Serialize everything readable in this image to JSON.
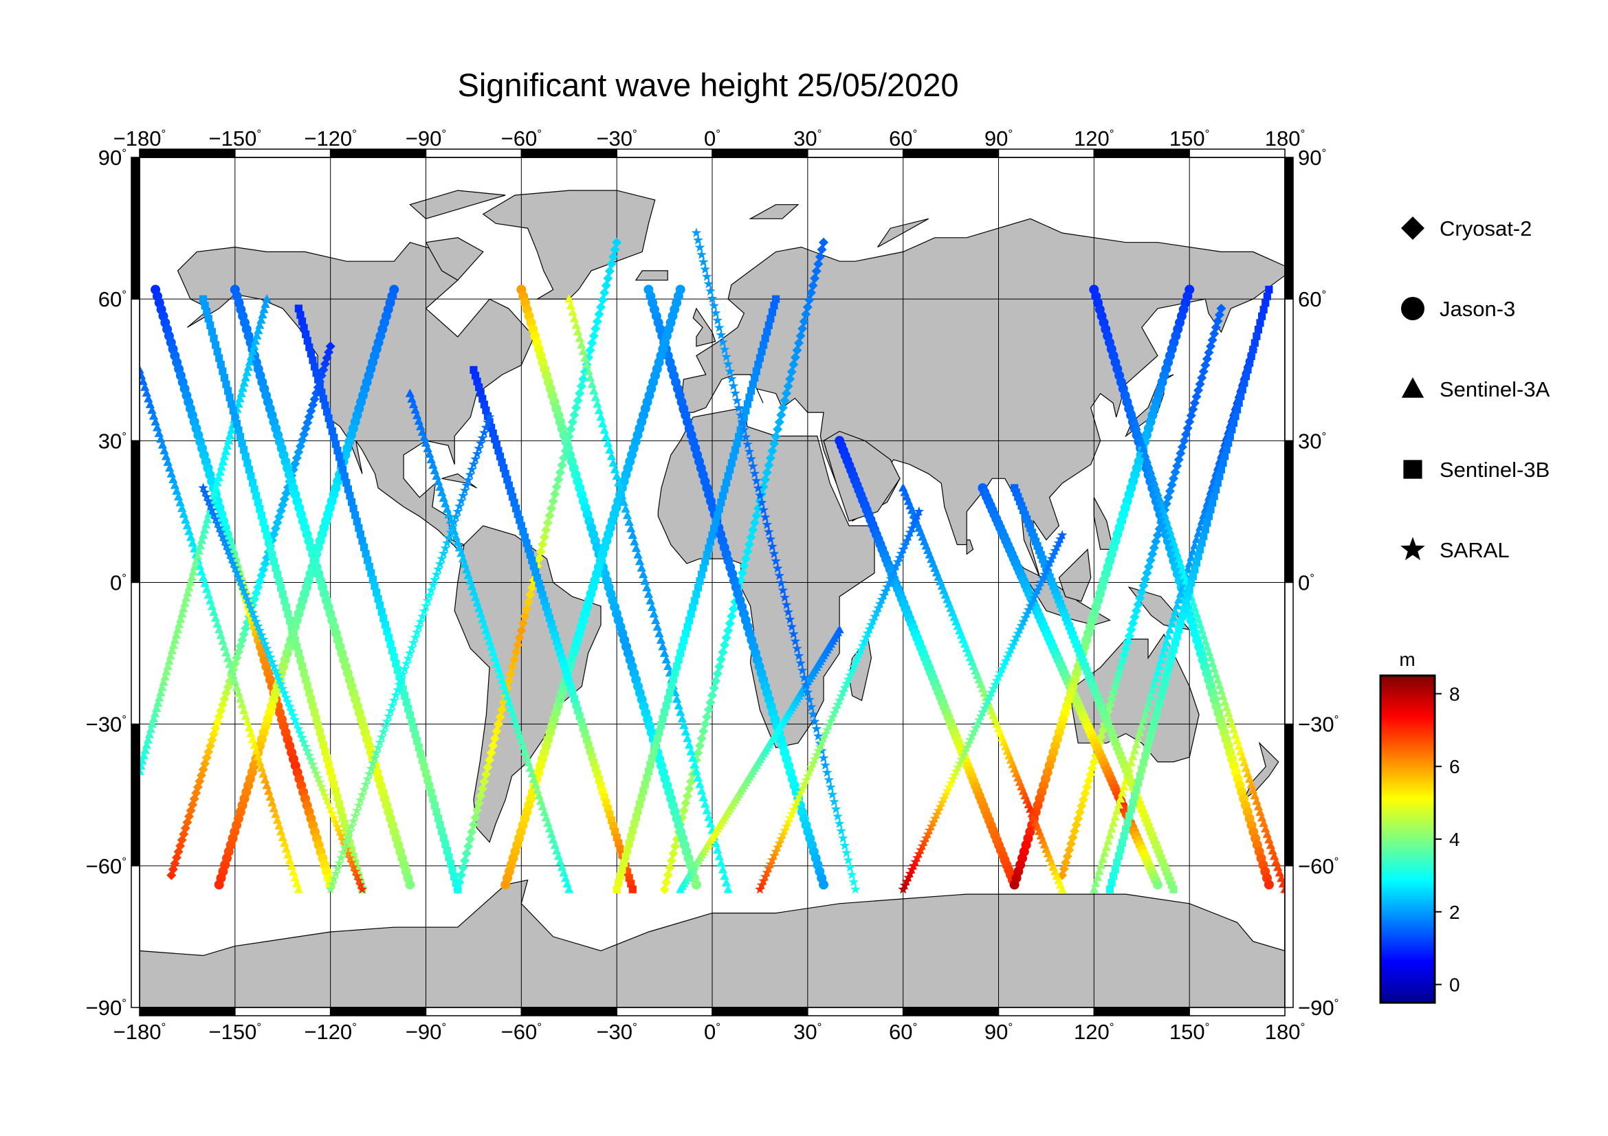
{
  "title": "Significant wave height 25/05/2020",
  "map": {
    "lon_ticks": [
      "-180",
      "-150",
      "-120",
      "-90",
      "-60",
      "-30",
      "0",
      "30",
      "60",
      "90",
      "120",
      "150",
      "180"
    ],
    "lat_ticks": [
      "90",
      "60",
      "30",
      "0",
      "-30",
      "-60",
      "-90"
    ],
    "degree_symbol": "°",
    "land_color": "#bdbdbd",
    "ocean_color": "#ffffff",
    "grid_color": "#000000"
  },
  "legend": {
    "items": [
      {
        "name": "Cryosat-2",
        "symbol": "diamond"
      },
      {
        "name": "Jason-3",
        "symbol": "circle"
      },
      {
        "name": "Sentinel-3A",
        "symbol": "triangle"
      },
      {
        "name": "Sentinel-3B",
        "symbol": "square"
      },
      {
        "name": "SARAL",
        "symbol": "star"
      }
    ]
  },
  "colorbar": {
    "unit": "m",
    "ticks": [
      "8",
      "6",
      "4",
      "2",
      "0"
    ],
    "range": [
      -0.5,
      8.5
    ],
    "colormap": "jet"
  },
  "chart_data": {
    "type": "scatter",
    "title": "Significant wave height 25/05/2020",
    "xlabel": "",
    "ylabel": "",
    "xlim": [
      -180,
      180
    ],
    "ylim": [
      -90,
      90
    ],
    "value_unit": "m",
    "series": [
      {
        "name": "Cryosat-2",
        "tracks": [
          {
            "from": [
              -30,
              72
            ],
            "to": [
              -80,
              -65
            ],
            "swh": [
              2.5,
              3,
              4,
              6,
              5,
              3
            ]
          },
          {
            "from": [
              35,
              72
            ],
            "to": [
              -15,
              -65
            ],
            "swh": [
              1.5,
              2,
              2.5,
              3,
              4,
              5
            ]
          },
          {
            "from": [
              160,
              58
            ],
            "to": [
              110,
              -62
            ],
            "swh": [
              1.5,
              1.5,
              2,
              3,
              5,
              6
            ]
          },
          {
            "from": [
              -120,
              50
            ],
            "to": [
              -170,
              -62
            ],
            "swh": [
              1,
              2,
              2.5,
              4,
              6,
              7
            ]
          }
        ]
      },
      {
        "name": "Jason-3",
        "tracks": [
          {
            "from": [
              -175,
              62
            ],
            "to": [
              -120,
              -64
            ],
            "swh": [
              1,
              2,
              3,
              6,
              7,
              5
            ]
          },
          {
            "from": [
              -150,
              62
            ],
            "to": [
              -95,
              -64
            ],
            "swh": [
              1.5,
              2,
              3,
              4,
              5,
              4
            ]
          },
          {
            "from": [
              -60,
              62
            ],
            "to": [
              -5,
              -64
            ],
            "swh": [
              6,
              4,
              2.5,
              2,
              3,
              4
            ]
          },
          {
            "from": [
              -20,
              62
            ],
            "to": [
              35,
              -64
            ],
            "swh": [
              2,
              1.5,
              1.5,
              2,
              3,
              2
            ]
          },
          {
            "from": [
              40,
              30
            ],
            "to": [
              95,
              -64
            ],
            "swh": [
              1,
              1.5,
              2.5,
              4,
              6,
              7
            ]
          },
          {
            "from": [
              85,
              20
            ],
            "to": [
              140,
              -64
            ],
            "swh": [
              1.5,
              2,
              3,
              5,
              7,
              4
            ]
          },
          {
            "from": [
              120,
              62
            ],
            "to": [
              175,
              -64
            ],
            "swh": [
              1,
              1.5,
              2,
              3,
              5,
              7
            ]
          },
          {
            "from": [
              -100,
              62
            ],
            "to": [
              -155,
              -64
            ],
            "swh": [
              1.5,
              2,
              3,
              4,
              6,
              7
            ]
          },
          {
            "from": [
              -10,
              62
            ],
            "to": [
              -65,
              -64
            ],
            "swh": [
              2,
              2,
              2.5,
              3,
              5,
              6
            ]
          },
          {
            "from": [
              150,
              62
            ],
            "to": [
              95,
              -64
            ],
            "swh": [
              1,
              2,
              3,
              4,
              6,
              8
            ]
          }
        ]
      },
      {
        "name": "Sentinel-3A",
        "tracks": [
          {
            "from": [
              -180,
              45
            ],
            "to": [
              -130,
              -65
            ],
            "swh": [
              1.5,
              2,
              3,
              4,
              6,
              5
            ]
          },
          {
            "from": [
              -140,
              60
            ],
            "to": [
              -180,
              -40
            ],
            "swh": [
              2,
              2.5,
              3,
              4,
              4,
              3
            ]
          },
          {
            "from": [
              -45,
              60
            ],
            "to": [
              5,
              -65
            ],
            "swh": [
              5,
              3,
              2,
              2,
              3,
              3
            ]
          },
          {
            "from": [
              60,
              20
            ],
            "to": [
              110,
              -65
            ],
            "swh": [
              1.5,
              2,
              3,
              5,
              7,
              5
            ]
          },
          {
            "from": [
              170,
              50
            ],
            "to": [
              120,
              -65
            ],
            "swh": [
              1,
              1.5,
              2,
              3,
              5,
              4
            ]
          },
          {
            "from": [
              -95,
              40
            ],
            "to": [
              -45,
              -65
            ],
            "swh": [
              1.5,
              2,
              2.5,
              3,
              4,
              3
            ]
          },
          {
            "from": [
              40,
              -10
            ],
            "to": [
              -10,
              -65
            ],
            "swh": [
              1.5,
              2,
              3,
              4,
              5,
              3
            ]
          },
          {
            "from": [
              130,
              40
            ],
            "to": [
              180,
              -65
            ],
            "swh": [
              1.5,
              2,
              3,
              4,
              6,
              7
            ]
          }
        ]
      },
      {
        "name": "Sentinel-3B",
        "tracks": [
          {
            "from": [
              -130,
              58
            ],
            "to": [
              -80,
              -65
            ],
            "swh": [
              1,
              1.5,
              2,
              3,
              4,
              3
            ]
          },
          {
            "from": [
              -75,
              45
            ],
            "to": [
              -25,
              -65
            ],
            "swh": [
              1,
              1.5,
              2,
              3,
              5,
              7
            ]
          },
          {
            "from": [
              95,
              20
            ],
            "to": [
              145,
              -65
            ],
            "swh": [
              1.5,
              2,
              3,
              4,
              5,
              4
            ]
          },
          {
            "from": [
              -160,
              60
            ],
            "to": [
              -110,
              -65
            ],
            "swh": [
              2,
              2,
              3,
              4,
              5,
              4
            ]
          },
          {
            "from": [
              20,
              60
            ],
            "to": [
              -30,
              -65
            ],
            "swh": [
              1.5,
              2,
              2,
              3,
              4,
              5
            ]
          },
          {
            "from": [
              175,
              62
            ],
            "to": [
              125,
              -65
            ],
            "swh": [
              1,
              1.5,
              2,
              3,
              4,
              3
            ]
          }
        ]
      },
      {
        "name": "SARAL",
        "tracks": [
          {
            "from": [
              -5,
              74
            ],
            "to": [
              45,
              -65
            ],
            "swh": [
              2,
              2,
              1.5,
              1.5,
              2,
              3
            ]
          },
          {
            "from": [
              -160,
              20
            ],
            "to": [
              -110,
              -65
            ],
            "swh": [
              1.5,
              2,
              2.5,
              3,
              5,
              7
            ]
          },
          {
            "from": [
              65,
              15
            ],
            "to": [
              15,
              -65
            ],
            "swh": [
              1.5,
              2,
              3,
              4,
              5,
              7
            ]
          },
          {
            "from": [
              110,
              10
            ],
            "to": [
              60,
              -65
            ],
            "swh": [
              1.5,
              2,
              3,
              4,
              6,
              8
            ]
          },
          {
            "from": [
              -70,
              35
            ],
            "to": [
              -120,
              -65
            ],
            "swh": [
              1.5,
              2,
              3,
              3,
              4,
              4
            ]
          }
        ]
      }
    ]
  }
}
